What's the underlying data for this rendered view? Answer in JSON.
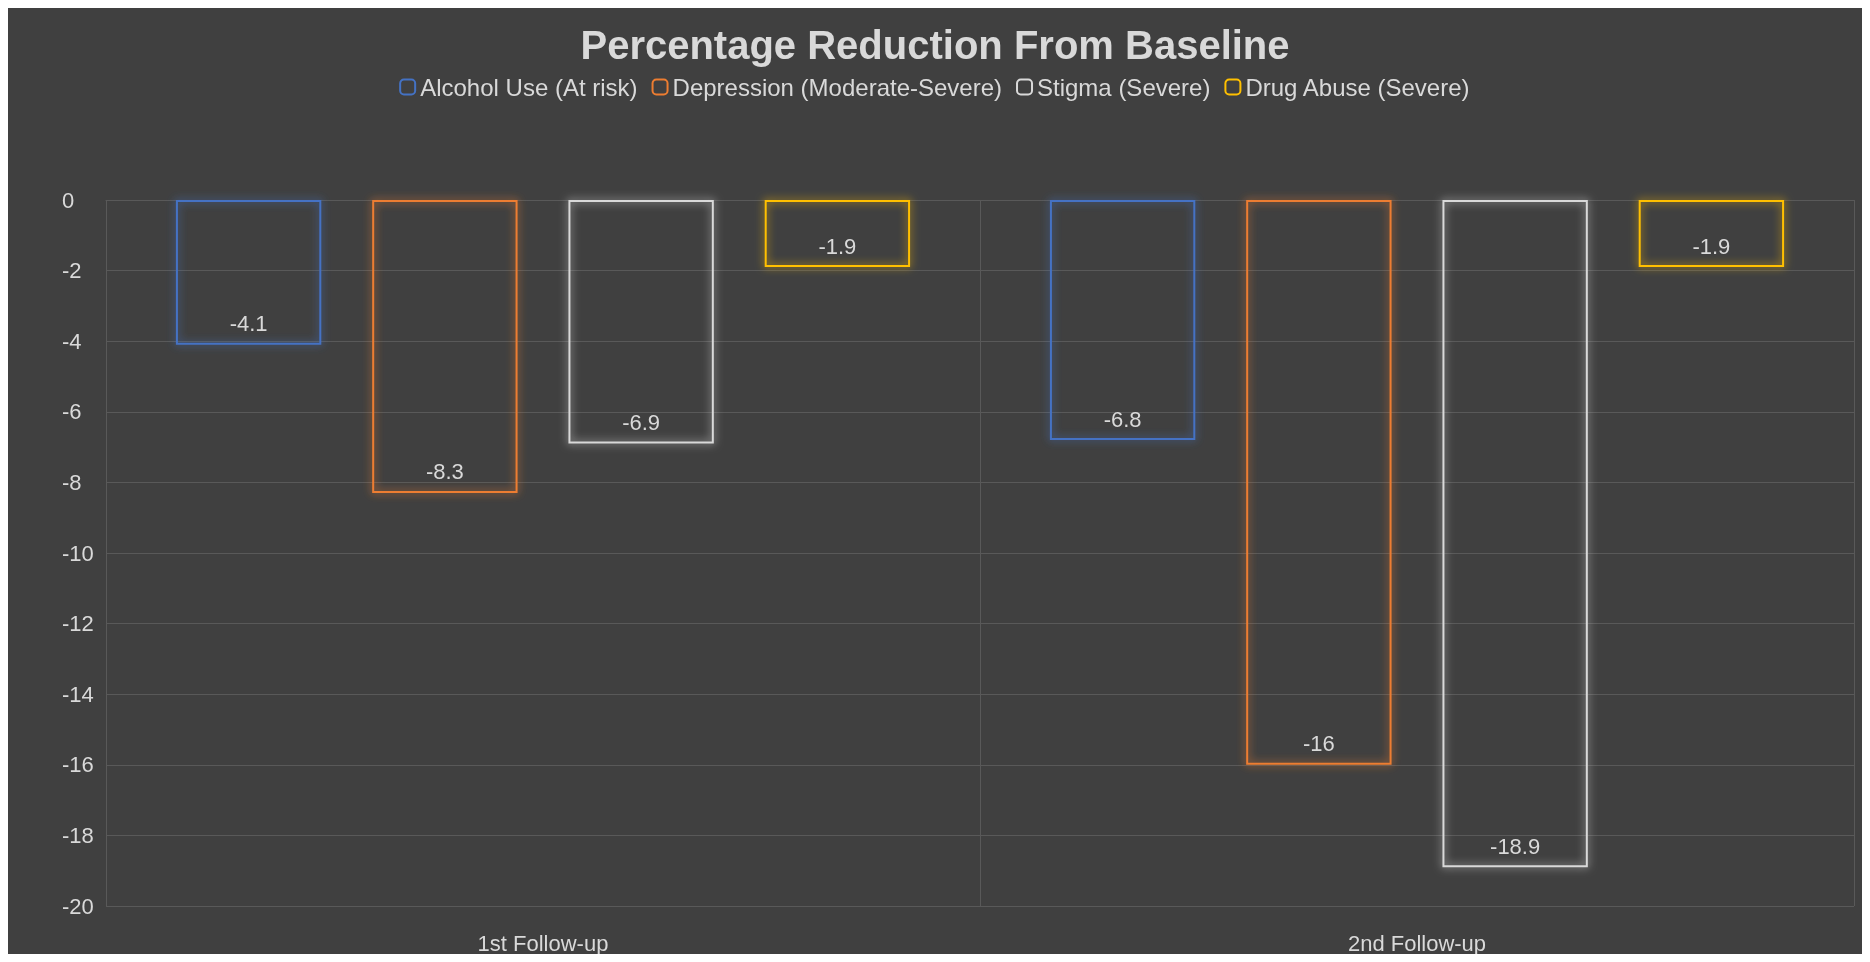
{
  "chart_data": {
    "type": "bar",
    "title": "Percentage Reduction From Baseline",
    "categories": [
      "1st Follow-up",
      "2nd Follow-up"
    ],
    "series": [
      {
        "name": "Alcohol Use (At risk)",
        "color": "#4472c4",
        "values": [
          -4.1,
          -6.8
        ]
      },
      {
        "name": "Depression (Moderate-Severe)",
        "color": "#ed7d31",
        "values": [
          -8.3,
          -16
        ]
      },
      {
        "name": "Stigma (Severe)",
        "color": "#d9d9d9",
        "values": [
          -6.9,
          -18.9
        ]
      },
      {
        "name": "Drug Abuse (Severe)",
        "color": "#ffc000",
        "values": [
          -1.9,
          -1.9
        ]
      }
    ],
    "ylim": [
      -20,
      0
    ],
    "yticks": [
      -20,
      -18,
      -16,
      -14,
      -12,
      -10,
      -8,
      -6,
      -4,
      -2,
      0
    ],
    "grid": true,
    "legend": "top",
    "data_labels": true
  }
}
